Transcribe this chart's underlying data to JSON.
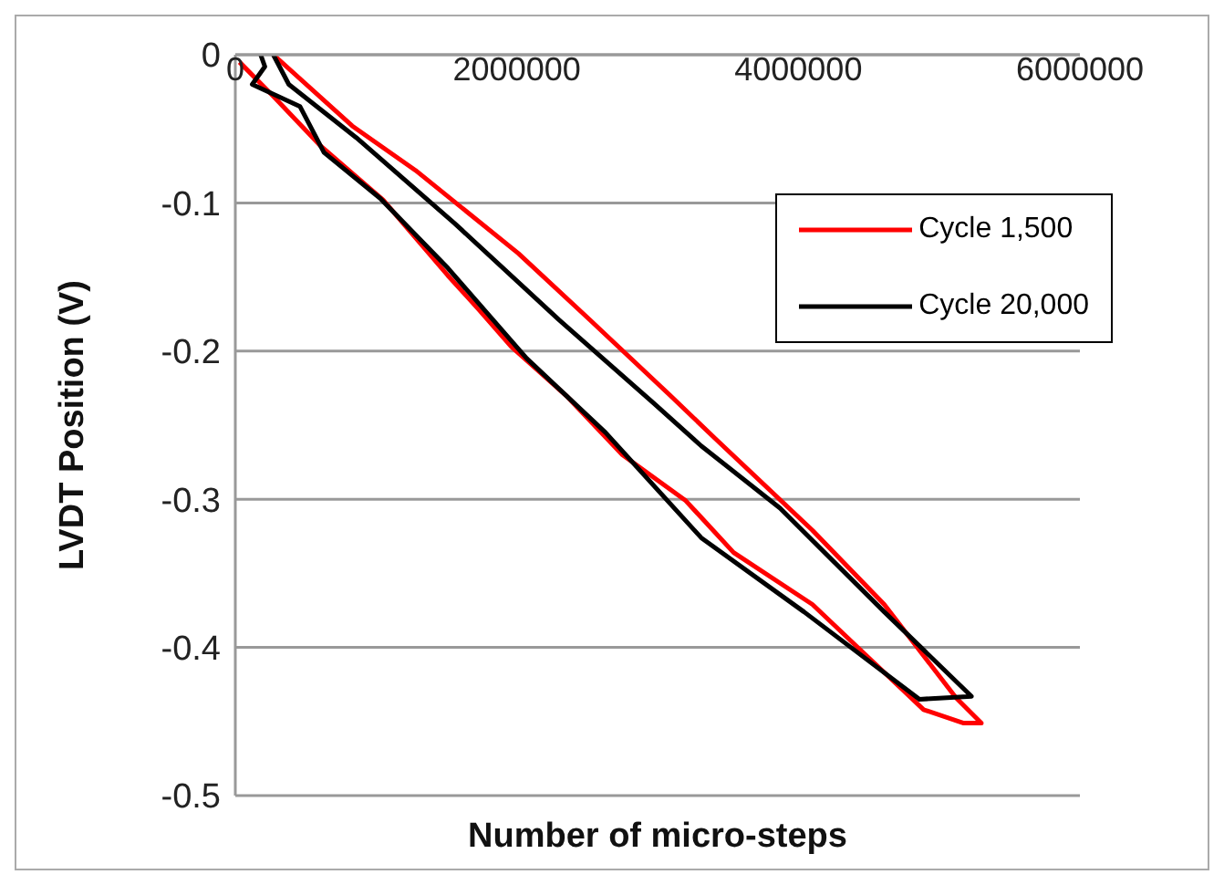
{
  "chart_data": {
    "type": "line",
    "xlabel": "Number of micro-steps",
    "ylabel": "LVDT Position (V)",
    "xlim": [
      0,
      6000000
    ],
    "xticks": [
      0,
      2000000,
      4000000,
      6000000
    ],
    "ylim": [
      -0.5,
      0
    ],
    "yticks": [
      0,
      -0.1,
      -0.2,
      -0.3,
      -0.4,
      -0.5
    ],
    "grid": "y",
    "legend": "top right",
    "marker": "none",
    "line_style": "solid",
    "series": [
      {
        "name": "Cycle 1,500",
        "color": "#ff0000",
        "x": [
          30000,
          270000,
          600000,
          1050000,
          1510000,
          1730000,
          1960000,
          2350000,
          2750000,
          3200000,
          3540000,
          4100000,
          4500000,
          4890000,
          5170000,
          5300000,
          5120000,
          4610000,
          4100000,
          3420000,
          3090000,
          2520000,
          2010000,
          1280000,
          830000,
          270000
        ],
        "values": [
          -0.005,
          -0.028,
          -0.061,
          -0.098,
          -0.149,
          -0.172,
          -0.197,
          -0.23,
          -0.27,
          -0.301,
          -0.336,
          -0.371,
          -0.407,
          -0.442,
          -0.451,
          -0.451,
          -0.434,
          -0.371,
          -0.321,
          -0.26,
          -0.23,
          -0.179,
          -0.134,
          -0.078,
          -0.048,
          0
        ]
      },
      {
        "name": "Cycle 20,000",
        "color": "#000000",
        "x": [
          180000,
          210000,
          120000,
          460000,
          630000,
          1030000,
          1510000,
          2070000,
          2630000,
          3310000,
          4040000,
          4860000,
          5230000,
          4610000,
          3870000,
          3310000,
          2970000,
          2300000,
          1560000,
          860000,
          380000,
          270000
        ],
        "values": [
          0,
          -0.008,
          -0.02,
          -0.035,
          -0.066,
          -0.097,
          -0.144,
          -0.205,
          -0.255,
          -0.326,
          -0.376,
          -0.435,
          -0.433,
          -0.376,
          -0.306,
          -0.264,
          -0.235,
          -0.179,
          -0.114,
          -0.056,
          -0.02,
          0
        ]
      }
    ]
  }
}
